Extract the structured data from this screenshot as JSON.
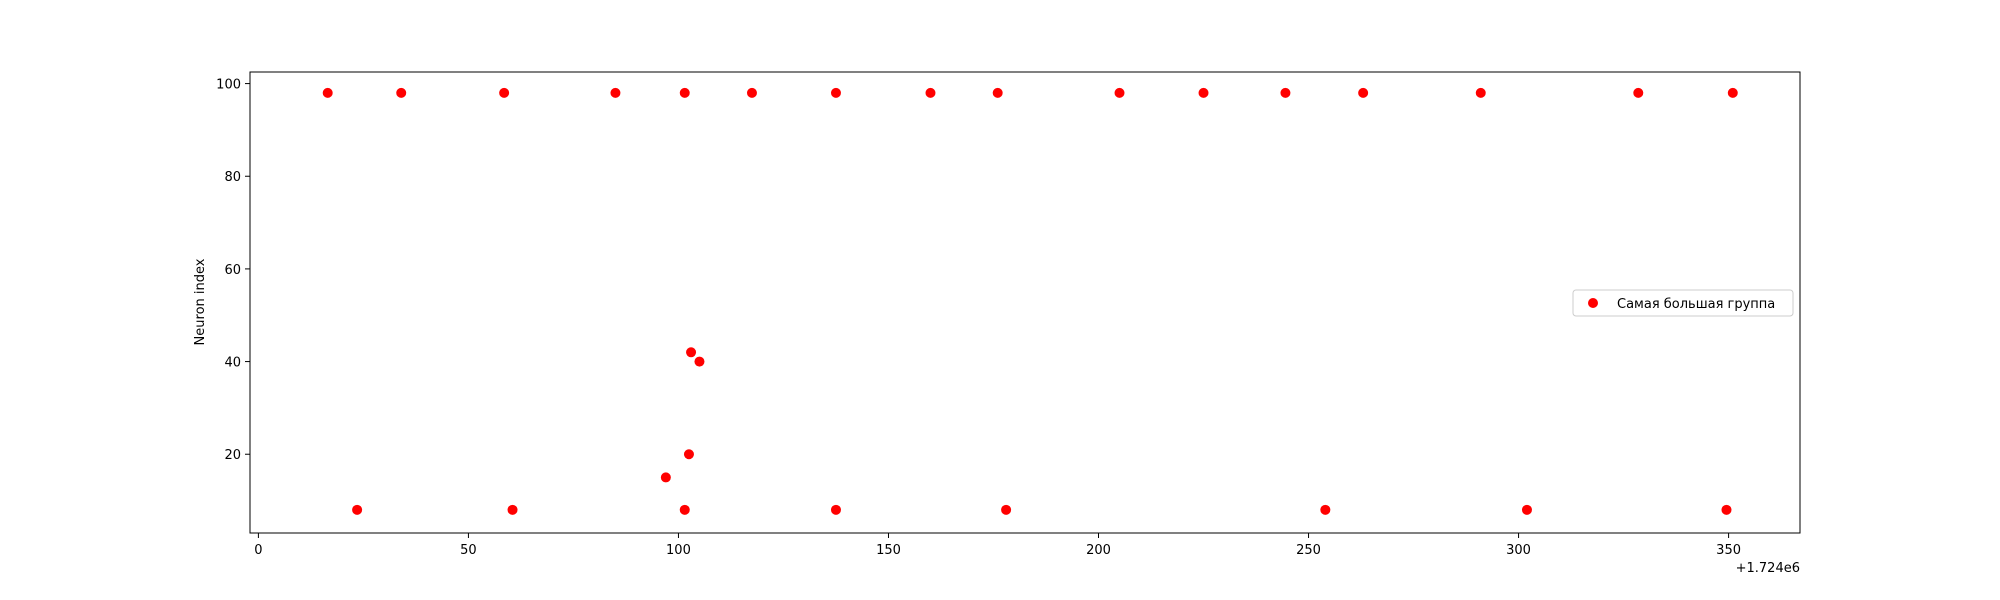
{
  "chart_data": {
    "type": "scatter",
    "title": "",
    "xlabel": "",
    "ylabel": "Neuron index",
    "x_offset_label": "+1.724e6",
    "xlim": [
      -2,
      367
    ],
    "ylim": [
      3,
      102.5
    ],
    "xticks": [
      0,
      50,
      100,
      150,
      200,
      250,
      300,
      350
    ],
    "xtick_labels": [
      "0",
      "50",
      "100",
      "150",
      "200",
      "250",
      "300",
      "350"
    ],
    "yticks": [
      20,
      40,
      60,
      80,
      100
    ],
    "ytick_labels": [
      "20",
      "40",
      "60",
      "80",
      "100"
    ],
    "grid": false,
    "legend_position": "center-right",
    "series": [
      {
        "name": "Самая большая группа",
        "color": "#ff0000",
        "marker": "circle",
        "points": [
          {
            "x": 16.5,
            "y": 98
          },
          {
            "x": 34,
            "y": 98
          },
          {
            "x": 58.5,
            "y": 98
          },
          {
            "x": 85,
            "y": 98
          },
          {
            "x": 101.5,
            "y": 98
          },
          {
            "x": 117.5,
            "y": 98
          },
          {
            "x": 137.5,
            "y": 98
          },
          {
            "x": 160,
            "y": 98
          },
          {
            "x": 176,
            "y": 98
          },
          {
            "x": 205,
            "y": 98
          },
          {
            "x": 225,
            "y": 98
          },
          {
            "x": 244.5,
            "y": 98
          },
          {
            "x": 263,
            "y": 98
          },
          {
            "x": 291,
            "y": 98
          },
          {
            "x": 328.5,
            "y": 98
          },
          {
            "x": 351,
            "y": 98
          },
          {
            "x": 23.5,
            "y": 8
          },
          {
            "x": 60.5,
            "y": 8
          },
          {
            "x": 101.5,
            "y": 8
          },
          {
            "x": 137.5,
            "y": 8
          },
          {
            "x": 178,
            "y": 8
          },
          {
            "x": 254,
            "y": 8
          },
          {
            "x": 302,
            "y": 8
          },
          {
            "x": 349.5,
            "y": 8
          },
          {
            "x": 97,
            "y": 15
          },
          {
            "x": 102.5,
            "y": 20
          },
          {
            "x": 103,
            "y": 42
          },
          {
            "x": 105,
            "y": 40
          }
        ]
      }
    ]
  }
}
